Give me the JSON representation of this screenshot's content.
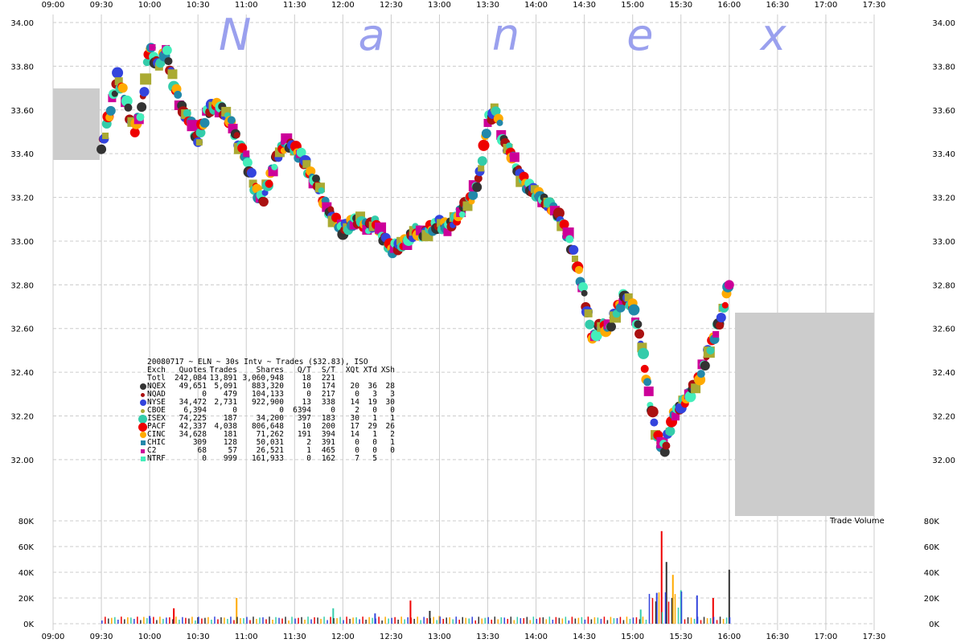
{
  "watermark": "N a n e x",
  "chart_data": {
    "type": "scatter",
    "title": "20080717 ~ ELN ~ 30s Intv ~ Trades ($32.83), ISO",
    "x_ticks": [
      "09:00",
      "09:30",
      "10:00",
      "10:30",
      "11:00",
      "11:30",
      "12:00",
      "12:30",
      "13:00",
      "13:30",
      "14:00",
      "14:30",
      "15:00",
      "15:30",
      "16:00",
      "16:30",
      "17:00",
      "17:30"
    ],
    "price_ticks": [
      "34.00",
      "33.80",
      "33.60",
      "33.40",
      "33.20",
      "33.00",
      "32.80",
      "32.60",
      "32.40",
      "32.20",
      "32.00"
    ],
    "price_ylim": [
      31.86,
      34.0
    ],
    "volume_ticks": [
      "80K",
      "60K",
      "40K",
      "20K",
      "0K"
    ],
    "volume_ylim": [
      0,
      80000
    ],
    "volume_label": "Trade Volume",
    "grid": true,
    "price_series": {
      "x": [
        "09:30",
        "09:35",
        "09:40",
        "09:45",
        "09:50",
        "09:55",
        "10:00",
        "10:05",
        "10:10",
        "10:15",
        "10:20",
        "10:25",
        "10:30",
        "10:35",
        "10:40",
        "10:45",
        "10:50",
        "10:55",
        "11:00",
        "11:05",
        "11:10",
        "11:15",
        "11:20",
        "11:25",
        "11:30",
        "11:35",
        "11:40",
        "11:45",
        "11:50",
        "11:55",
        "12:00",
        "12:05",
        "12:10",
        "12:15",
        "12:20",
        "12:25",
        "12:30",
        "12:35",
        "12:40",
        "12:45",
        "12:50",
        "12:55",
        "13:00",
        "13:05",
        "13:10",
        "13:15",
        "13:20",
        "13:25",
        "13:30",
        "13:35",
        "13:40",
        "13:45",
        "13:50",
        "13:55",
        "14:00",
        "14:05",
        "14:10",
        "14:15",
        "14:20",
        "14:25",
        "14:30",
        "14:35",
        "14:40",
        "14:45",
        "14:50",
        "14:55",
        "15:00",
        "15:05",
        "15:10",
        "15:15",
        "15:20",
        "15:25",
        "15:30",
        "15:35",
        "15:40",
        "15:45",
        "15:50",
        "15:55",
        "16:00"
      ],
      "y": [
        33.42,
        33.58,
        33.75,
        33.65,
        33.5,
        33.6,
        33.9,
        33.8,
        33.88,
        33.72,
        33.6,
        33.55,
        33.45,
        33.58,
        33.62,
        33.6,
        33.55,
        33.45,
        33.38,
        33.25,
        33.18,
        33.3,
        33.4,
        33.45,
        33.42,
        33.38,
        33.3,
        33.25,
        33.15,
        33.1,
        33.05,
        33.08,
        33.1,
        33.06,
        33.08,
        33.02,
        32.96,
        32.98,
        33.0,
        33.05,
        33.03,
        33.06,
        33.08,
        33.06,
        33.1,
        33.15,
        33.2,
        33.3,
        33.55,
        33.6,
        33.45,
        33.4,
        33.3,
        33.25,
        33.22,
        33.18,
        33.15,
        33.1,
        33.02,
        32.9,
        32.75,
        32.55,
        32.62,
        32.6,
        32.68,
        32.75,
        32.7,
        32.55,
        32.3,
        32.1,
        32.05,
        32.2,
        32.25,
        32.3,
        32.35,
        32.45,
        32.55,
        32.65,
        32.8
      ]
    },
    "volume_bars": {
      "x": [
        "10:00",
        "10:15",
        "10:30",
        "10:54",
        "11:54",
        "12:20",
        "12:42",
        "12:54",
        "13:00",
        "15:05",
        "15:15",
        "15:18",
        "15:21",
        "15:25",
        "15:30",
        "15:40",
        "15:50",
        "16:00"
      ],
      "values": [
        6000,
        12000,
        5000,
        20000,
        12000,
        8000,
        18000,
        10000,
        6000,
        11000,
        24000,
        72000,
        48000,
        38000,
        26000,
        22000,
        20000,
        42000
      ]
    },
    "legend": {
      "header": [
        "Exch",
        "Quotes",
        "Trades",
        "Shares",
        "Q/T",
        "S/T",
        "XQt",
        "XTd",
        "XSh"
      ],
      "total": [
        "Totl",
        "242,084",
        "13,891",
        "3,060,948",
        "18",
        "221",
        "",
        "",
        ""
      ],
      "rows": [
        {
          "exch": "NQEX",
          "quotes": "49,651",
          "trades": "5,091",
          "shares": "883,320",
          "qt": "10",
          "st": "174",
          "xqt": "20",
          "xtd": "36",
          "xsh": "28",
          "color": "#333333",
          "shape": "circle",
          "size": 8
        },
        {
          "exch": "NQAD",
          "quotes": "0",
          "trades": "479",
          "shares": "104,133",
          "qt": "0",
          "st": "217",
          "xqt": "0",
          "xtd": "3",
          "xsh": "3",
          "color": "#aa1111",
          "shape": "circle",
          "size": 5
        },
        {
          "exch": "NYSE",
          "quotes": "34,472",
          "trades": "2,731",
          "shares": "922,900",
          "qt": "13",
          "st": "338",
          "xqt": "14",
          "xtd": "19",
          "xsh": "30",
          "color": "#3344dd",
          "shape": "circle",
          "size": 8
        },
        {
          "exch": "CBOE",
          "quotes": "6,394",
          "trades": "0",
          "shares": "0",
          "qt": "6394",
          "st": "0",
          "xqt": "2",
          "xtd": "0",
          "xsh": "0",
          "color": "#aaaa33",
          "shape": "circle",
          "size": 5
        },
        {
          "exch": "ISEX",
          "quotes": "74,225",
          "trades": "187",
          "shares": "34,200",
          "qt": "397",
          "st": "183",
          "xqt": "30",
          "xtd": "1",
          "xsh": "1",
          "color": "#33ccaa",
          "shape": "circle",
          "size": 11
        },
        {
          "exch": "PACF",
          "quotes": "42,337",
          "trades": "4,038",
          "shares": "806,648",
          "qt": "10",
          "st": "200",
          "xqt": "17",
          "xtd": "29",
          "xsh": "26",
          "color": "#ee0000",
          "shape": "circle",
          "size": 11
        },
        {
          "exch": "CINC",
          "quotes": "34,628",
          "trades": "181",
          "shares": "71,262",
          "qt": "191",
          "st": "394",
          "xqt": "14",
          "xtd": "1",
          "xsh": "2",
          "color": "#ffaa00",
          "shape": "circle",
          "size": 8
        },
        {
          "exch": "CHIC",
          "quotes": "309",
          "trades": "128",
          "shares": "50,031",
          "qt": "2",
          "st": "391",
          "xqt": "0",
          "xtd": "0",
          "xsh": "1",
          "color": "#2288aa",
          "shape": "square",
          "size": 6
        },
        {
          "exch": "C2",
          "quotes": "68",
          "trades": "57",
          "shares": "26,521",
          "qt": "1",
          "st": "465",
          "xqt": "0",
          "xtd": "0",
          "xsh": "0",
          "color": "#cc0099",
          "shape": "square",
          "size": 5
        },
        {
          "exch": "NTRF",
          "quotes": "0",
          "trades": "999",
          "shares": "161,933",
          "qt": "0",
          "st": "162",
          "xqt": "7",
          "xtd": "5",
          "xsh": "",
          "color": "#44eebb",
          "shape": "square",
          "size": 6
        }
      ]
    }
  }
}
